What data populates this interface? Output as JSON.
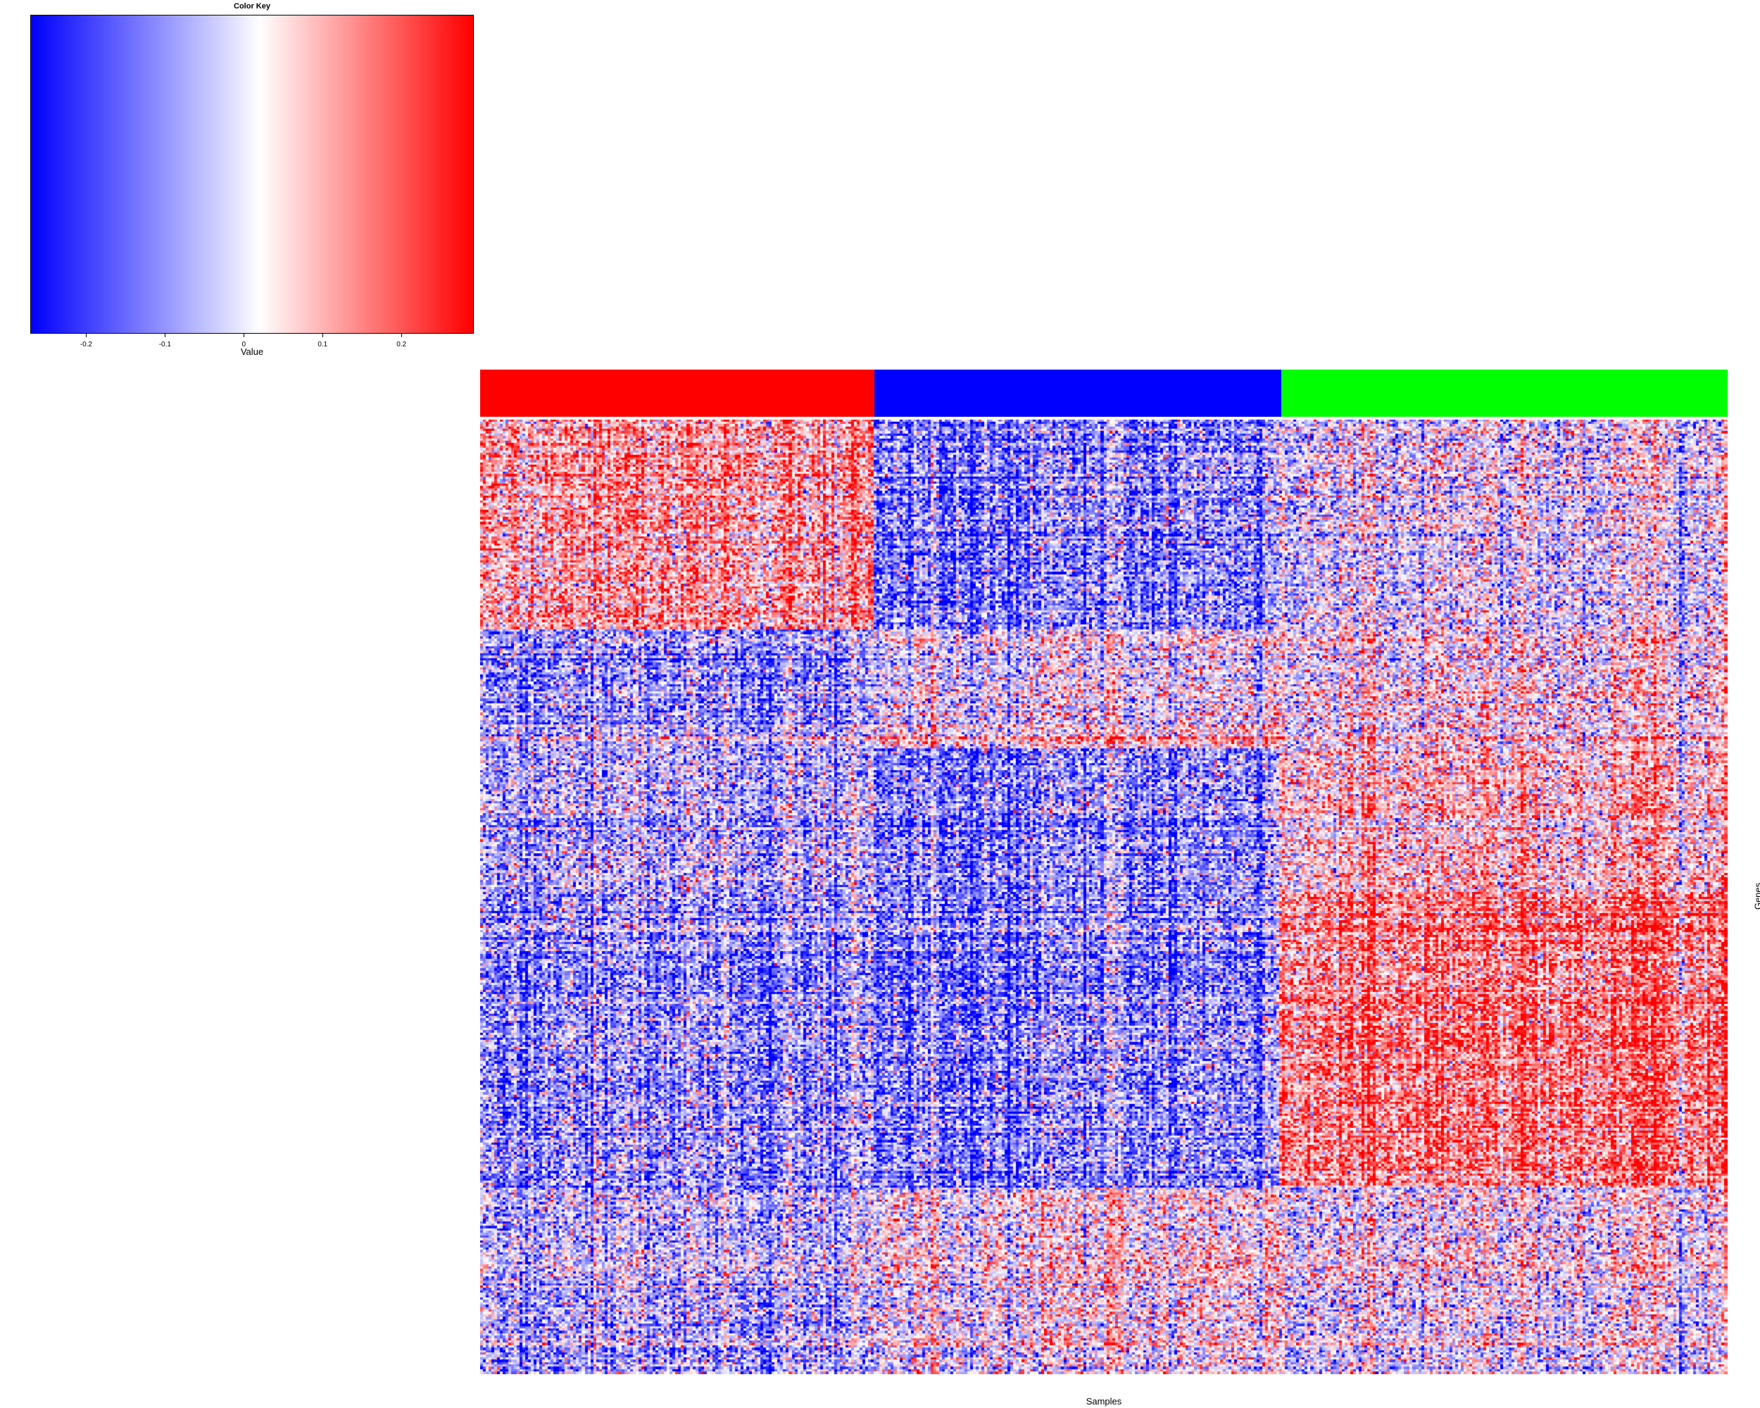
{
  "chart_data": {
    "type": "heatmap",
    "key": {
      "title": "Color Key",
      "xlabel": "Value",
      "range": [
        -0.27,
        0.29
      ],
      "ticks": [
        {
          "value": -0.2,
          "label": "-0.2"
        },
        {
          "value": -0.1,
          "label": "-0.1"
        },
        {
          "value": 0,
          "label": "0"
        },
        {
          "value": 0.1,
          "label": "0.1"
        },
        {
          "value": 0.2,
          "label": "0.2"
        }
      ],
      "colors": {
        "low": "#0000ff",
        "mid": "#ffffff",
        "high": "#ff0000"
      },
      "midpoint": 0.02
    },
    "xlabel": "Samples",
    "ylabel": "Genes",
    "groups": [
      {
        "color": "#ff0000",
        "fraction": 0.316
      },
      {
        "color": "#0000ff",
        "fraction": 0.326
      },
      {
        "color": "#00ff00",
        "fraction": 0.358
      }
    ],
    "n_samples": 440,
    "n_genes": 400,
    "row_blocks": [
      {
        "fraction": 0.22,
        "group_means": [
          0.12,
          -0.12,
          0.0
        ]
      },
      {
        "fraction": 0.1,
        "group_means": [
          -0.1,
          0.0,
          0.04
        ]
      },
      {
        "fraction": 0.025,
        "group_means": [
          -0.05,
          0.05,
          0.03
        ]
      },
      {
        "fraction": 0.15,
        "group_means": [
          -0.06,
          -0.12,
          0.08
        ]
      },
      {
        "fraction": 0.31,
        "group_means": [
          -0.1,
          -0.12,
          0.16
        ]
      },
      {
        "fraction": 0.195,
        "group_means": [
          -0.06,
          0.02,
          0.01
        ]
      }
    ]
  }
}
